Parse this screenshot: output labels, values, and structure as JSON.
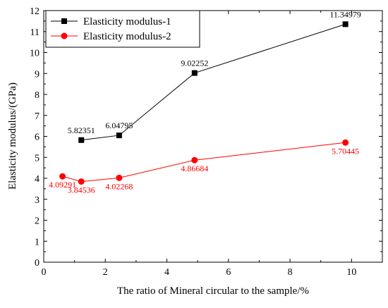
{
  "chart_data": {
    "type": "line",
    "xlabel": "The ratio of Mineral circular to the sample/%",
    "ylabel": "Elasticity modulus/(GPa)",
    "xlim": [
      0,
      11
    ],
    "ylim": [
      0,
      12
    ],
    "xticks": [
      0,
      2,
      4,
      6,
      8,
      10
    ],
    "yticks": [
      0,
      1,
      2,
      3,
      4,
      5,
      6,
      7,
      8,
      9,
      10,
      11,
      12
    ],
    "grid": false,
    "legend_position": "top-left",
    "series": [
      {
        "name": "Elasticity modulus-1",
        "color": "#000000",
        "marker": "square",
        "x": [
          1.22,
          2.45,
          4.9,
          9.8
        ],
        "y": [
          5.82351,
          6.04795,
          9.02252,
          11.34979
        ],
        "labels": [
          "5.82351",
          "6.04795",
          "9.02252",
          "11.34979"
        ],
        "label_position": "above"
      },
      {
        "name": "Elasticity modulus-2",
        "color": "#ff0000",
        "marker": "circle",
        "x": [
          0.61,
          1.22,
          2.45,
          4.9,
          9.8
        ],
        "y": [
          4.09291,
          3.84536,
          4.02268,
          4.86684,
          5.70445
        ],
        "labels": [
          "4.09291",
          "3.84536",
          "4.02268",
          "4.86684",
          "5.70445"
        ],
        "label_position": "below"
      }
    ]
  }
}
